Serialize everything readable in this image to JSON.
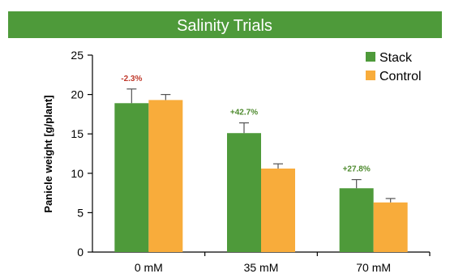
{
  "chart_data": {
    "type": "bar",
    "title": "Salinity Trials",
    "xlabel": "",
    "ylabel": "Panicle weight [g/plant]",
    "ylim": [
      0,
      25
    ],
    "yticks": [
      0,
      5,
      10,
      15,
      20,
      25
    ],
    "categories": [
      "0 mM",
      "35 mM",
      "70 mM"
    ],
    "series": [
      {
        "name": "Stack",
        "color": "#4e9a3a",
        "values": [
          18.9,
          15.1,
          8.1
        ],
        "errors": [
          1.8,
          1.3,
          1.1
        ]
      },
      {
        "name": "Control",
        "color": "#f8ac3b",
        "values": [
          19.3,
          10.6,
          6.3
        ],
        "errors": [
          0.7,
          0.6,
          0.5
        ]
      }
    ],
    "annotations": [
      {
        "category": "0 mM",
        "text": "-2.3%",
        "color": "#c0392b"
      },
      {
        "category": "35 mM",
        "text": "+42.7%",
        "color": "#4e8a2e"
      },
      {
        "category": "70 mM",
        "text": "+27.8%",
        "color": "#4e8a2e"
      }
    ],
    "legend_position": "top-right",
    "grid": false,
    "title_bar_color": "#4e9a3a"
  }
}
